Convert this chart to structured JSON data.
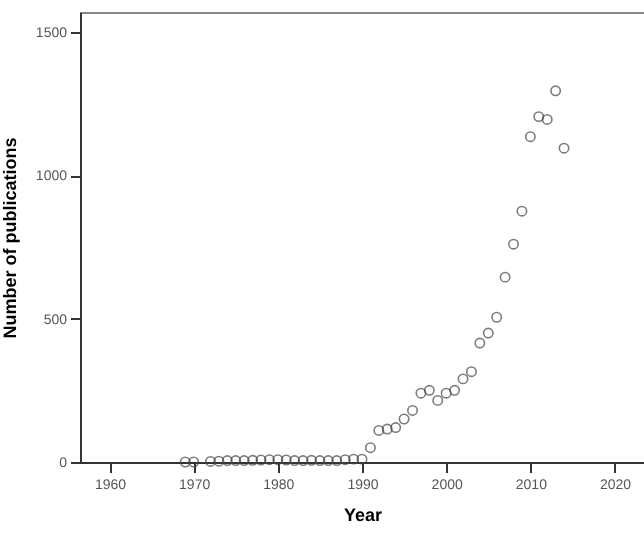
{
  "chart_data": {
    "type": "scatter",
    "xlabel": "Year",
    "ylabel": "Number of publications",
    "x": [
      1969,
      1970,
      1972,
      1973,
      1974,
      1975,
      1976,
      1977,
      1978,
      1979,
      1980,
      1981,
      1982,
      1983,
      1984,
      1985,
      1986,
      1987,
      1988,
      1989,
      1990,
      1991,
      1992,
      1993,
      1994,
      1995,
      1996,
      1997,
      1998,
      1999,
      2000,
      2001,
      2002,
      2003,
      2004,
      2005,
      2006,
      2007,
      2008,
      2009,
      2010,
      2011,
      2012,
      2013,
      2014
    ],
    "values": [
      0,
      0,
      2,
      3,
      5,
      5,
      5,
      6,
      7,
      8,
      8,
      7,
      5,
      5,
      6,
      5,
      5,
      5,
      8,
      10,
      10,
      50,
      110,
      115,
      120,
      150,
      180,
      240,
      250,
      215,
      240,
      250,
      290,
      315,
      415,
      450,
      505,
      645,
      760,
      875,
      1135,
      1205,
      1195,
      1295,
      1095
    ],
    "color": "#444444",
    "marker": "circle",
    "grid": false,
    "xlim": [
      1956.5,
      2023.5
    ],
    "xticks": [
      1960,
      1970,
      1980,
      1990,
      2000,
      2010,
      2020
    ],
    "ylim": [
      0,
      1570
    ],
    "yticks": [
      0,
      500,
      1000,
      1500
    ]
  }
}
